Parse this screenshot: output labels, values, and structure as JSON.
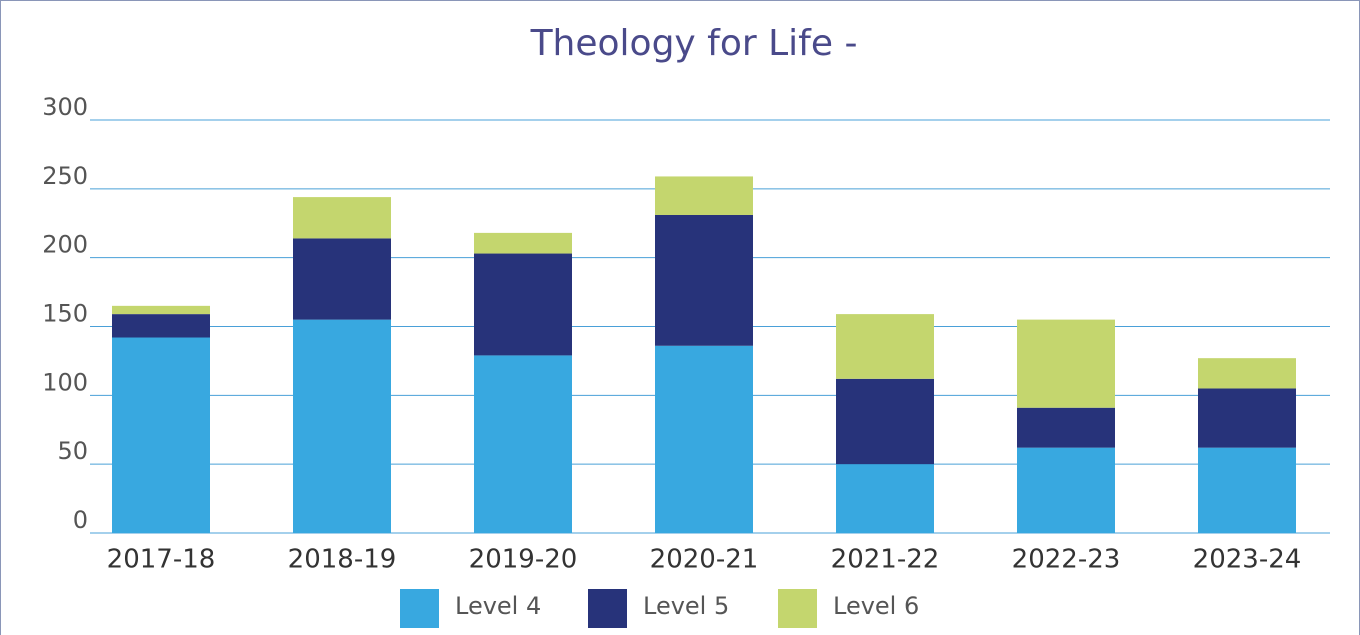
{
  "chart_data": {
    "type": "stacked_bar",
    "title": "Theology for Life -",
    "categories": [
      "2017-18",
      "2018-19",
      "2019-20",
      "2020-21",
      "2021-22",
      "2022-23",
      "2023-24"
    ],
    "series": [
      {
        "name": "Level 4",
        "color": "#38a8e0",
        "values": [
          142,
          155,
          129,
          136,
          50,
          62,
          62
        ]
      },
      {
        "name": "Level 5",
        "color": "#27337a",
        "values": [
          17,
          59,
          74,
          95,
          62,
          29,
          43
        ]
      },
      {
        "name": "Level 6",
        "color": "#c4d66e",
        "values": [
          6,
          30,
          15,
          28,
          47,
          64,
          22
        ]
      }
    ],
    "ylim": [
      0,
      300
    ],
    "yticks": [
      0,
      50,
      100,
      150,
      200,
      250,
      300
    ],
    "grid": true,
    "legend": "bottom"
  }
}
